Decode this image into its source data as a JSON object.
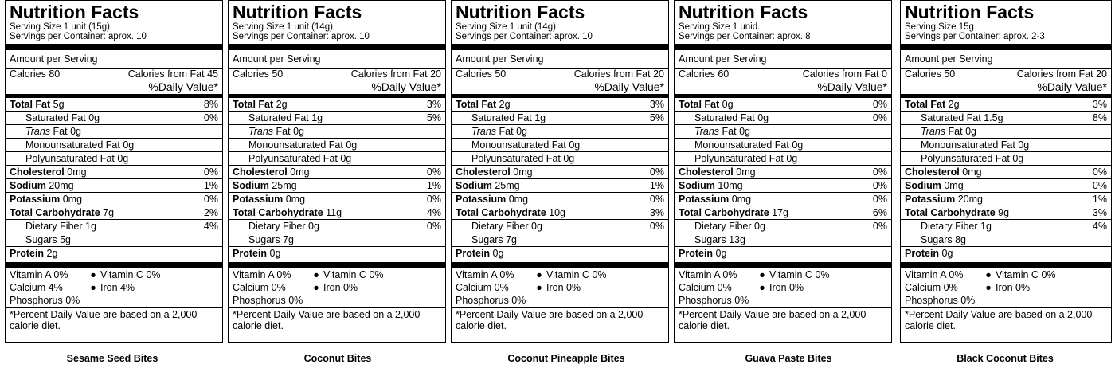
{
  "common": {
    "title": "Nutrition Facts",
    "amount_per_serving": "Amount per Serving",
    "calories_label": "Calories",
    "calories_from_fat_label": "Calories from Fat",
    "daily_value_header": "%Daily Value*",
    "total_fat": "Total Fat",
    "saturated_fat": "Saturated Fat",
    "trans": "Trans",
    "fat": "Fat",
    "mono": "Monounsaturated Fat",
    "poly": "Polyunsaturated Fat",
    "cholesterol": "Cholesterol",
    "sodium": "Sodium",
    "potassium": "Potassium",
    "total_carb": "Total Carbohydrate",
    "fiber": "Dietary Fiber",
    "sugars": "Sugars",
    "protein": "Protein",
    "vitamin_a": "Vitamin A",
    "vitamin_c": "Vitamin C",
    "calcium": "Calcium",
    "iron": "Iron",
    "phosphorus": "Phosphorus",
    "bullet": "●",
    "footnote": "*Percent Daily Value are based on a 2,000 calorie diet."
  },
  "panels": [
    {
      "serving_size": "Serving Size  1 unit  (15g)",
      "servings_per": "Servings per Container:  aprox. 10",
      "calories": "80",
      "calories_fat": "45",
      "total_fat": "5g",
      "total_fat_dv": "8%",
      "sat_fat": "0g",
      "sat_fat_dv": "0%",
      "trans_fat": "0g",
      "mono": "0g",
      "poly": "0g",
      "cholesterol": "0mg",
      "cholesterol_dv": "0%",
      "sodium": "20mg",
      "sodium_dv": "1%",
      "potassium": "0mg",
      "potassium_dv": "0%",
      "carb": "7g",
      "carb_dv": "2%",
      "fiber": "1g",
      "fiber_dv": "4%",
      "sugars": "5g",
      "protein": "2g",
      "vit_a": "0%",
      "vit_c": "0%",
      "calcium": "4%",
      "iron": "4%",
      "phosphorus": "0%",
      "caption": "Sesame Seed Bites"
    },
    {
      "serving_size": "Serving Size  1 unit  (14g)",
      "servings_per": "Servings per Container:  aprox. 10",
      "calories": "50",
      "calories_fat": "20",
      "total_fat": "2g",
      "total_fat_dv": "3%",
      "sat_fat": "1g",
      "sat_fat_dv": "5%",
      "trans_fat": "0g",
      "mono": "0g",
      "poly": "0g",
      "cholesterol": "0mg",
      "cholesterol_dv": "0%",
      "sodium": "25mg",
      "sodium_dv": "1%",
      "potassium": "0mg",
      "potassium_dv": "0%",
      "carb": "11g",
      "carb_dv": "4%",
      "fiber": "0g",
      "fiber_dv": "0%",
      "sugars": "7g",
      "protein": "0g",
      "vit_a": "0%",
      "vit_c": "0%",
      "calcium": "0%",
      "iron": "0%",
      "phosphorus": "0%",
      "caption": "Coconut Bites"
    },
    {
      "serving_size": "Serving Size  1 unit  (14g)",
      "servings_per": "Servings per Container:  aprox. 10",
      "calories": "50",
      "calories_fat": "20",
      "total_fat": "2g",
      "total_fat_dv": "3%",
      "sat_fat": "1g",
      "sat_fat_dv": "5%",
      "trans_fat": "0g",
      "mono": "0g",
      "poly": "0g",
      "cholesterol": "0mg",
      "cholesterol_dv": "0%",
      "sodium": "25mg",
      "sodium_dv": "1%",
      "potassium": "0mg",
      "potassium_dv": "0%",
      "carb": "10g",
      "carb_dv": "3%",
      "fiber": "0g",
      "fiber_dv": "0%",
      "sugars": "7g",
      "protein": "0g",
      "vit_a": "0%",
      "vit_c": "0%",
      "calcium": "0%",
      "iron": "0%",
      "phosphorus": "0%",
      "caption": "Coconut Pineapple Bites"
    },
    {
      "serving_size": "Serving Size  1 unid.",
      "servings_per": "Servings per Container:  aprox. 8",
      "calories": "60",
      "calories_fat": "0",
      "total_fat": "0g",
      "total_fat_dv": "0%",
      "sat_fat": "0g",
      "sat_fat_dv": "0%",
      "trans_fat": "0g",
      "mono": "0g",
      "poly": "0g",
      "cholesterol": "0mg",
      "cholesterol_dv": "0%",
      "sodium": "10mg",
      "sodium_dv": "0%",
      "potassium": "0mg",
      "potassium_dv": "0%",
      "carb": "17g",
      "carb_dv": "6%",
      "fiber": "0g",
      "fiber_dv": "0%",
      "sugars": "13g",
      "protein": "0g",
      "vit_a": "0%",
      "vit_c": "0%",
      "calcium": "0%",
      "iron": "0%",
      "phosphorus": "0%",
      "caption": "Guava Paste Bites"
    },
    {
      "serving_size": "Serving Size   15g",
      "servings_per": "Servings per Container:  aprox. 2-3",
      "calories": "50",
      "calories_fat": "20",
      "total_fat": "2g",
      "total_fat_dv": "3%",
      "sat_fat": "1.5g",
      "sat_fat_dv": "8%",
      "trans_fat": "0g",
      "mono": "0g",
      "poly": "0g",
      "cholesterol": "0mg",
      "cholesterol_dv": "0%",
      "sodium": "0mg",
      "sodium_dv": "0%",
      "potassium": "20mg",
      "potassium_dv": "1%",
      "carb": "9g",
      "carb_dv": "3%",
      "fiber": "1g",
      "fiber_dv": "4%",
      "sugars": "8g",
      "protein": "0g",
      "vit_a": "0%",
      "vit_c": "0%",
      "calcium": "0%",
      "iron": "0%",
      "phosphorus": "0%",
      "caption": "Black Coconut Bites"
    }
  ]
}
